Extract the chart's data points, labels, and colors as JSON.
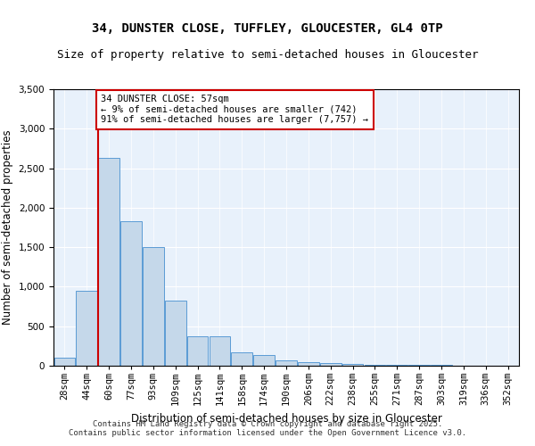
{
  "title": "34, DUNSTER CLOSE, TUFFLEY, GLOUCESTER, GL4 0TP",
  "subtitle": "Size of property relative to semi-detached houses in Gloucester",
  "xlabel": "Distribution of semi-detached houses by size in Gloucester",
  "ylabel": "Number of semi-detached properties",
  "categories": [
    "28sqm",
    "44sqm",
    "60sqm",
    "77sqm",
    "93sqm",
    "109sqm",
    "125sqm",
    "141sqm",
    "158sqm",
    "174sqm",
    "190sqm",
    "206sqm",
    "222sqm",
    "238sqm",
    "255sqm",
    "271sqm",
    "287sqm",
    "303sqm",
    "319sqm",
    "336sqm",
    "352sqm"
  ],
  "values": [
    100,
    950,
    2630,
    1830,
    1500,
    820,
    375,
    375,
    175,
    130,
    65,
    40,
    30,
    20,
    15,
    10,
    8,
    6,
    4,
    3,
    2
  ],
  "bar_color": "#c5d8ea",
  "bar_edge_color": "#5b9bd5",
  "vline_color": "#cc0000",
  "vline_position": 1.5,
  "annotation_text": "34 DUNSTER CLOSE: 57sqm\n← 9% of semi-detached houses are smaller (742)\n91% of semi-detached houses are larger (7,757) →",
  "annotation_box_color": "#ffffff",
  "annotation_box_edge": "#cc0000",
  "ylim": [
    0,
    3500
  ],
  "yticks": [
    0,
    500,
    1000,
    1500,
    2000,
    2500,
    3000,
    3500
  ],
  "footer_text": "Contains HM Land Registry data © Crown copyright and database right 2025.\nContains public sector information licensed under the Open Government Licence v3.0.",
  "bg_color": "#e8f1fb",
  "fig_bg_color": "#ffffff",
  "title_fontsize": 10,
  "subtitle_fontsize": 9,
  "axis_label_fontsize": 8.5,
  "tick_fontsize": 7.5,
  "annotation_fontsize": 7.5,
  "footer_fontsize": 6.5
}
